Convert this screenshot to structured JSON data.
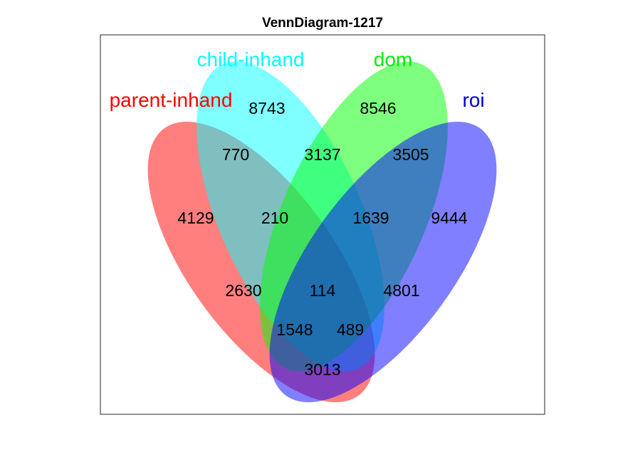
{
  "title": "VennDiagram-1217",
  "sets": [
    {
      "key": "parent",
      "label": "parent-inhand",
      "color": "#ff0000",
      "fill": "#ff0000"
    },
    {
      "key": "child",
      "label": "child-inhand",
      "color": "#00ffff",
      "fill": "#00ffff"
    },
    {
      "key": "dom",
      "label": "dom",
      "color": "#00ee00",
      "fill": "#00ff00"
    },
    {
      "key": "roi",
      "label": "roi",
      "color": "#0000cc",
      "fill": "#0000ff"
    }
  ],
  "regions": {
    "child_only": "8743",
    "dom_only": "8546",
    "parent_child": "770",
    "child_dom": "3137",
    "dom_roi": "3505",
    "parent_only": "4129",
    "parent_child_dom": "210",
    "child_dom_roi": "1639",
    "roi_only": "9444",
    "parent_dom": "2630",
    "all_four": "114",
    "child_roi": "4801",
    "parent_dom_roi": "1548",
    "parent_child_roi": "489",
    "parent_roi": "3013"
  }
}
